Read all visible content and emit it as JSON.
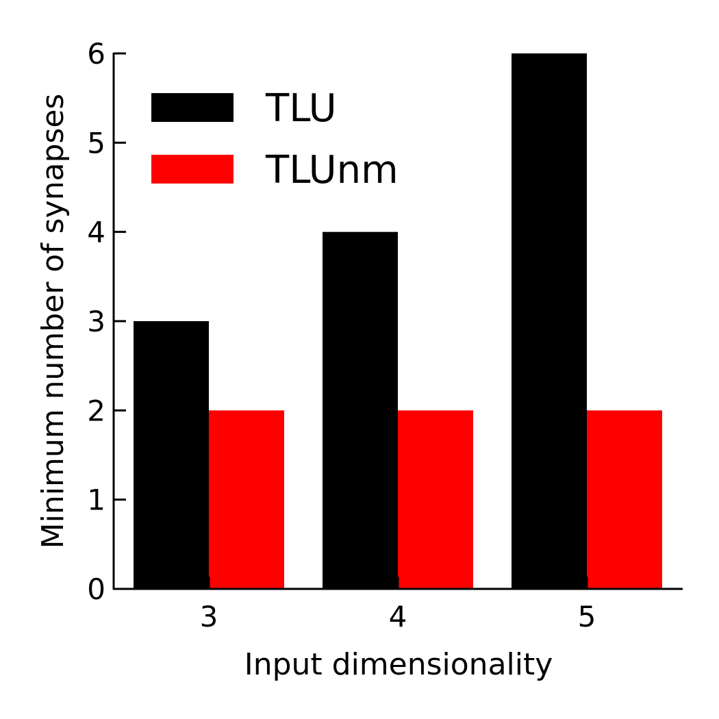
{
  "chart_data": {
    "type": "bar",
    "categories": [
      "3",
      "4",
      "5"
    ],
    "series": [
      {
        "name": "TLU",
        "values": [
          3,
          4,
          6
        ],
        "color": "#000000"
      },
      {
        "name": "TLUnm",
        "values": [
          2,
          2,
          2
        ],
        "color": "#ff0000"
      }
    ],
    "xlabel": "Input dimensionality",
    "ylabel": "Minimum number of synapses",
    "ylim": [
      0,
      6
    ],
    "yticks": [
      "0",
      "1",
      "2",
      "3",
      "4",
      "5",
      "6"
    ],
    "grid": false,
    "legend_position": "top-left"
  }
}
